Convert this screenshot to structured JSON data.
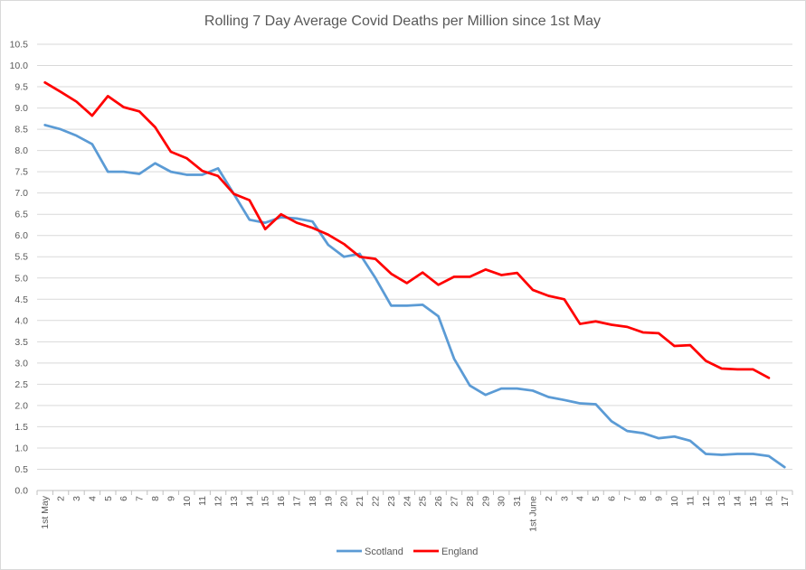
{
  "chart_data": {
    "type": "line",
    "title": "Rolling 7 Day Average Covid Deaths per Million since 1st May",
    "xlabel": "",
    "ylabel": "",
    "ylim": [
      0,
      10.5
    ],
    "ytick_step": 0.5,
    "grid": true,
    "legend_position": "bottom",
    "categories": [
      "1st May",
      "2",
      "3",
      "4",
      "5",
      "6",
      "7",
      "8",
      "9",
      "10",
      "11",
      "12",
      "13",
      "14",
      "15",
      "16",
      "17",
      "18",
      "19",
      "20",
      "21",
      "22",
      "23",
      "24",
      "25",
      "26",
      "27",
      "28",
      "29",
      "30",
      "31",
      "1st June",
      "2",
      "3",
      "4",
      "5",
      "6",
      "7",
      "8",
      "9",
      "10",
      "11",
      "12",
      "13",
      "14",
      "15",
      "16",
      "17"
    ],
    "series": [
      {
        "name": "Scotland",
        "color": "#5b9bd5",
        "values": [
          8.6,
          8.5,
          8.35,
          8.15,
          7.5,
          7.5,
          7.45,
          7.7,
          7.5,
          7.43,
          7.43,
          7.58,
          6.98,
          6.37,
          6.3,
          6.43,
          6.4,
          6.33,
          5.78,
          5.5,
          5.57,
          5.0,
          4.35,
          4.35,
          4.37,
          4.1,
          3.1,
          2.47,
          2.25,
          2.4,
          2.4,
          2.35,
          2.2,
          2.13,
          2.05,
          2.03,
          1.63,
          1.4,
          1.35,
          1.23,
          1.27,
          1.17,
          0.86,
          0.84,
          0.86,
          0.86,
          0.81,
          0.55
        ]
      },
      {
        "name": "England",
        "color": "#ff0000",
        "values": [
          9.6,
          9.38,
          9.15,
          8.82,
          9.28,
          9.02,
          8.92,
          8.55,
          7.97,
          7.82,
          7.52,
          7.4,
          6.98,
          6.83,
          6.15,
          6.5,
          6.3,
          6.18,
          6.02,
          5.8,
          5.5,
          5.45,
          5.1,
          4.88,
          5.13,
          4.84,
          5.03,
          5.03,
          5.2,
          5.07,
          5.12,
          4.72,
          4.58,
          4.5,
          3.92,
          3.98,
          3.9,
          3.85,
          3.72,
          3.7,
          3.4,
          3.42,
          3.05,
          2.87,
          2.85,
          2.85,
          2.65,
          null
        ]
      }
    ]
  }
}
